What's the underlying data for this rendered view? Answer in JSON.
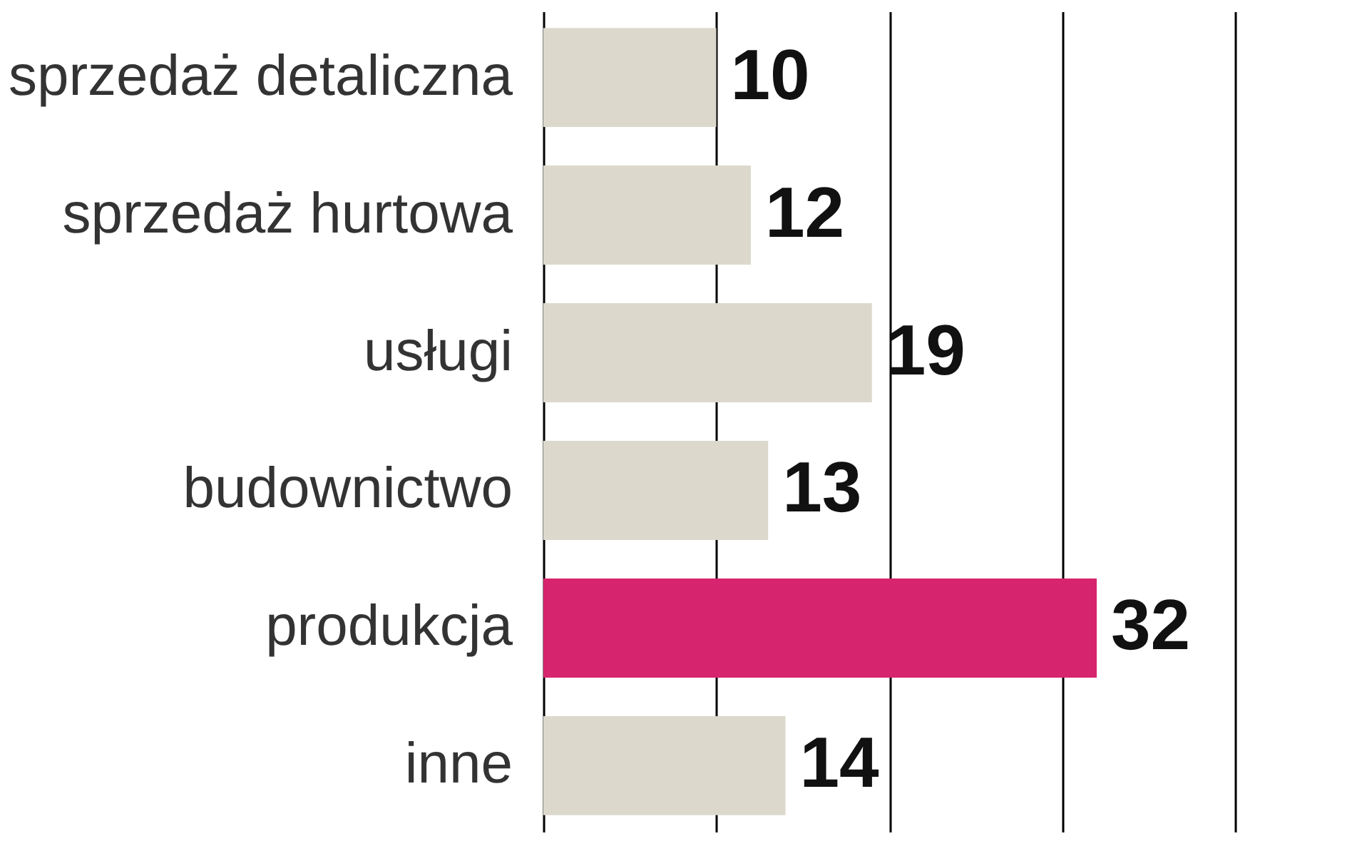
{
  "chart_data": {
    "type": "bar",
    "orientation": "horizontal",
    "categories": [
      "sprzedaż detaliczna",
      "sprzedaż hurtowa",
      "usługi",
      "budownictwo",
      "produkcja",
      "inne"
    ],
    "values": [
      10,
      12,
      19,
      13,
      32,
      14
    ],
    "colors": [
      "#dcd9cc",
      "#dcd9cc",
      "#dcd9cc",
      "#dcd9cc",
      "#d6246e",
      "#dcd9cc"
    ],
    "xlim": [
      0,
      40
    ],
    "xticks": [
      {
        "value": 0,
        "label": null
      },
      {
        "value": 10,
        "label": null
      },
      {
        "value": 20,
        "label": null
      },
      {
        "value": 30,
        "label": null
      },
      {
        "value": 40,
        "label": null
      }
    ],
    "grid": "x",
    "data_labels": true,
    "tick_labels": false
  }
}
